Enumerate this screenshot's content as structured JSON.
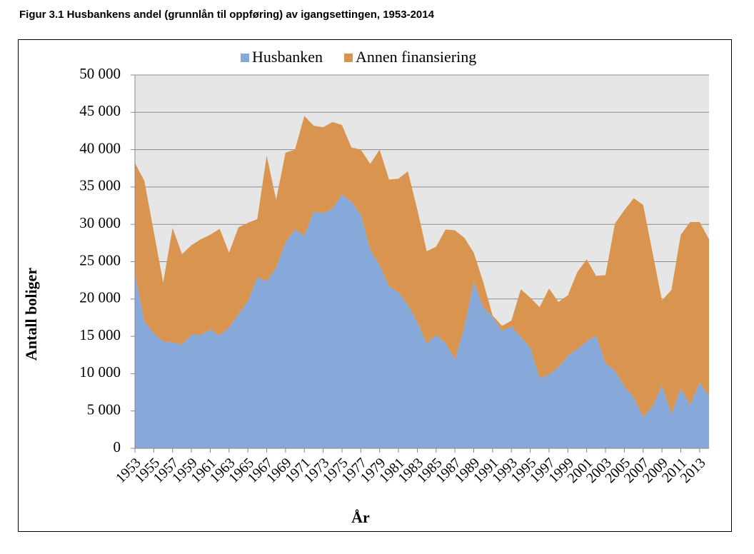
{
  "chart_data": {
    "type": "stacked-area",
    "title": "Figur 3.1 Husbankens andel (grunnlån til oppføring) av igangsettingen, 1953-2014",
    "xlabel": "År",
    "ylabel": "Antall boliger",
    "x": [
      1953,
      1954,
      1955,
      1956,
      1957,
      1958,
      1959,
      1960,
      1961,
      1962,
      1963,
      1964,
      1965,
      1966,
      1967,
      1968,
      1969,
      1970,
      1971,
      1972,
      1973,
      1974,
      1975,
      1976,
      1977,
      1978,
      1979,
      1980,
      1981,
      1982,
      1983,
      1984,
      1985,
      1986,
      1987,
      1988,
      1989,
      1990,
      1991,
      1992,
      1993,
      1994,
      1995,
      1996,
      1997,
      1998,
      1999,
      2000,
      2001,
      2002,
      2003,
      2004,
      2005,
      2006,
      2007,
      2008,
      2009,
      2010,
      2011,
      2012,
      2013,
      2014
    ],
    "xlim": [
      1953,
      2014
    ],
    "xticks": [
      1953,
      1955,
      1957,
      1959,
      1961,
      1963,
      1965,
      1967,
      1969,
      1971,
      1973,
      1975,
      1977,
      1979,
      1981,
      1983,
      1985,
      1987,
      1989,
      1991,
      1993,
      1995,
      1997,
      1999,
      2001,
      2003,
      2005,
      2007,
      2009,
      2011,
      2013
    ],
    "ylim": [
      0,
      50000
    ],
    "yticks": [
      0,
      {
        "value": 5000,
        "label": "5 000"
      },
      {
        "value": 10000,
        "label": "10 000"
      },
      {
        "value": 15000,
        "label": "15 000"
      },
      {
        "value": 20000,
        "label": "20 000"
      },
      {
        "value": 25000,
        "label": "25 000"
      },
      {
        "value": 30000,
        "label": "30 000"
      },
      {
        "value": 35000,
        "label": "35 000"
      },
      {
        "value": 40000,
        "label": "40 000"
      },
      {
        "value": 45000,
        "label": "45 000"
      },
      {
        "value": 50000,
        "label": "50 000"
      }
    ],
    "grid": true,
    "legend": "top",
    "series": [
      {
        "name": "Husbanken",
        "color": "#86a9d9",
        "values": [
          23500,
          17000,
          15400,
          14300,
          14200,
          13900,
          15200,
          15200,
          15900,
          15100,
          16200,
          18000,
          19700,
          22900,
          22400,
          24200,
          27600,
          29300,
          28500,
          31700,
          31500,
          32100,
          34000,
          33000,
          31300,
          26600,
          24500,
          21700,
          20900,
          19200,
          16900,
          14000,
          15200,
          14100,
          11900,
          16200,
          22300,
          18900,
          17600,
          15700,
          16300,
          14900,
          13500,
          9400,
          9900,
          10900,
          12400,
          13300,
          14300,
          15100,
          11400,
          10400,
          8300,
          6800,
          4200,
          5600,
          8400,
          4600,
          8000,
          5800,
          8800,
          7000
        ]
      },
      {
        "name": "Annen finansiering",
        "color": "#d9954f",
        "values": [
          14700,
          18800,
          13600,
          7900,
          15300,
          12100,
          12000,
          12800,
          12700,
          14300,
          10000,
          11600,
          10500,
          7800,
          16800,
          9100,
          12000,
          10700,
          16000,
          11500,
          11500,
          11600,
          9300,
          7300,
          8700,
          11500,
          15500,
          14300,
          15200,
          17900,
          15100,
          12400,
          11800,
          15200,
          17300,
          12000,
          3900,
          3400,
          200,
          700,
          800,
          6400,
          6700,
          9500,
          11500,
          8700,
          8100,
          10300,
          11000,
          8000,
          11800,
          19700,
          23600,
          26700,
          28400,
          20600,
          11400,
          16600,
          20600,
          24500,
          21500,
          21000
        ]
      }
    ]
  }
}
